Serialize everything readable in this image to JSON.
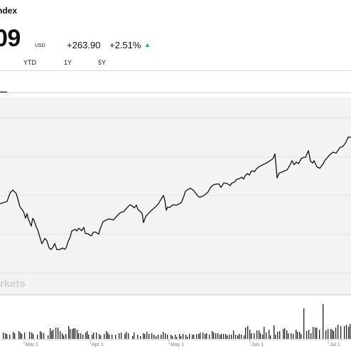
{
  "quote": {
    "name": "ndex",
    "price": "09",
    "currency": "USD",
    "change_abs": "+263.90",
    "change_pct": "+2.51%",
    "direction": "up",
    "up_color": "#1ab36b"
  },
  "ranges": [
    "YTD",
    "1Y",
    "5Y"
  ],
  "watermark": "rkets",
  "chart_data": {
    "type": "line",
    "x_ticks": [
      "Mar 1",
      "Apr 1",
      "May 1",
      "Jun 1",
      "Jul 1"
    ],
    "line": [
      [
        0,
        286.75
      ],
      [
        10,
        283.43
      ],
      [
        14,
        271.93
      ],
      [
        18,
        267.5
      ],
      [
        23,
        272.58
      ],
      [
        28,
        290.84
      ],
      [
        33,
        297.59
      ],
      [
        36,
        307.22
      ],
      [
        38,
        300.69
      ],
      [
        40,
        308.53
      ],
      [
        44,
        318.3
      ],
      [
        46,
        307.38
      ],
      [
        48,
        310.26
      ],
      [
        51,
        319.51
      ],
      [
        53,
        323.18
      ],
      [
        56,
        333.48
      ],
      [
        59,
        343.08
      ],
      [
        63,
        335.5
      ],
      [
        66,
        338.8
      ],
      [
        69,
        348.86
      ],
      [
        72,
        351.3
      ],
      [
        75,
        347.12
      ],
      [
        77,
        342.71
      ],
      [
        80,
        351.29
      ],
      [
        84,
        351.11
      ],
      [
        88,
        349.11
      ],
      [
        91,
        351.01
      ],
      [
        93,
        348.84
      ],
      [
        96,
        339.74
      ],
      [
        99,
        332.85
      ],
      [
        101,
        325.13
      ],
      [
        106,
        322.67
      ],
      [
        108,
        325.08
      ],
      [
        111,
        321.22
      ],
      [
        115,
        324.83
      ],
      [
        118,
        320.02
      ],
      [
        120,
        328.51
      ],
      [
        124,
        328.86
      ],
      [
        127,
        331.63
      ],
      [
        129,
        331.56
      ],
      [
        131,
        327.07
      ],
      [
        134,
        326.47
      ],
      [
        139,
        329.38
      ],
      [
        141,
        321.82
      ],
      [
        145,
        312.21
      ],
      [
        149,
        309.73
      ],
      [
        151,
        309.28
      ],
      [
        153,
        308.02
      ],
      [
        156,
        308.62
      ],
      [
        160,
        309.52
      ],
      [
        163,
        305.7
      ],
      [
        166,
        302.25
      ],
      [
        169,
        299.8
      ],
      [
        171,
        298.61
      ],
      [
        174,
        297.96
      ],
      [
        177,
        294.33
      ],
      [
        181,
        290.03
      ],
      [
        183,
        288.09
      ],
      [
        186,
        289.97
      ],
      [
        189,
        292.66
      ],
      [
        192,
        288.62
      ],
      [
        194,
        294.67
      ],
      [
        197,
        297.33
      ],
      [
        200,
        300.26
      ],
      [
        202,
        313.33
      ],
      [
        205,
        304.62
      ],
      [
        209,
        300.47
      ],
      [
        214,
        295.38
      ],
      [
        220,
        290.06
      ],
      [
        223,
        286.73
      ],
      [
        227,
        279.86
      ],
      [
        230,
        275.17
      ],
      [
        232,
        282.17
      ],
      [
        234,
        295.99
      ],
      [
        236,
        291.27
      ],
      [
        239,
        291.91
      ],
      [
        243,
        288.41
      ],
      [
        249,
        288.58
      ],
      [
        255,
        285.31
      ],
      [
        258,
        278.33
      ],
      [
        261,
        269.37
      ],
      [
        265,
        266.23
      ],
      [
        268,
        264.95
      ],
      [
        272,
        267.53
      ],
      [
        275,
        271.35
      ],
      [
        278,
        275.51
      ],
      [
        281,
        277.76
      ],
      [
        287,
        275.31
      ],
      [
        291,
        271.79
      ],
      [
        293,
        269.87
      ],
      [
        296,
        264.23
      ],
      [
        300,
        260.35
      ],
      [
        303,
        259.32
      ],
      [
        308,
        258.79
      ],
      [
        311,
        263.88
      ],
      [
        315,
        257.36
      ],
      [
        320,
        258.54
      ],
      [
        324,
        261.13
      ],
      [
        326,
        257.87
      ],
      [
        330,
        256.3
      ],
      [
        333,
        252.42
      ],
      [
        337,
        251.51
      ],
      [
        340,
        249.43
      ],
      [
        343,
        251.93
      ],
      [
        345,
        247.44
      ],
      [
        348,
        244.18
      ],
      [
        351,
        246.31
      ],
      [
        354,
        240.38
      ],
      [
        358,
        241.57
      ],
      [
        361,
        237.63
      ],
      [
        364,
        234.98
      ],
      [
        368,
        232.87
      ],
      [
        371,
        231.35
      ],
      [
        375,
        229.42
      ],
      [
        380,
        226.16
      ],
      [
        384,
        223.5
      ],
      [
        387,
        216.57
      ],
      [
        390,
        250.41
      ],
      [
        393,
        243.39
      ],
      [
        397,
        242.17
      ],
      [
        401,
        240.24
      ],
      [
        404,
        239.08
      ],
      [
        408,
        232.64
      ],
      [
        411,
        226.19
      ],
      [
        414,
        231.84
      ],
      [
        417,
        228.05
      ],
      [
        420,
        230.5
      ],
      [
        424,
        223.26
      ],
      [
        427,
        221.66
      ],
      [
        430,
        221.34
      ],
      [
        434,
        212.05
      ],
      [
        437,
        226.77
      ],
      [
        440,
        229.49
      ],
      [
        442,
        226.11
      ],
      [
        446,
        234.76
      ],
      [
        450,
        236.88
      ],
      [
        455,
        230.33
      ],
      [
        457,
        226.04
      ],
      [
        462,
        220.25
      ],
      [
        466,
        216.08
      ],
      [
        469,
        214.11
      ],
      [
        473,
        215.57
      ],
      [
        476,
        211.07
      ],
      [
        479,
        207.12
      ],
      [
        482,
        206.38
      ],
      [
        485,
        203.08
      ],
      [
        487,
        199.66
      ],
      [
        490,
        193.06
      ],
      [
        494,
        193.06
      ]
    ],
    "volume": [
      [
        4,
        9
      ],
      [
        7,
        8
      ],
      [
        9,
        7
      ],
      [
        13,
        6
      ],
      [
        18,
        10
      ],
      [
        20,
        8
      ],
      [
        26,
        11
      ],
      [
        28,
        9
      ],
      [
        30,
        7
      ],
      [
        34,
        9
      ],
      [
        41,
        10
      ],
      [
        44,
        9
      ],
      [
        46,
        7
      ],
      [
        52,
        6
      ],
      [
        56,
        11
      ],
      [
        58,
        9
      ],
      [
        61,
        8
      ],
      [
        67,
        5
      ],
      [
        70,
        15
      ],
      [
        72,
        11
      ],
      [
        74,
        13
      ],
      [
        78,
        16
      ],
      [
        81,
        16
      ],
      [
        84,
        11
      ],
      [
        87,
        8
      ],
      [
        89,
        5
      ],
      [
        92,
        7
      ],
      [
        96,
        18
      ],
      [
        98,
        14
      ],
      [
        101,
        14
      ],
      [
        103,
        15
      ],
      [
        105,
        15
      ],
      [
        108,
        13
      ],
      [
        110,
        8
      ],
      [
        113,
        8
      ],
      [
        116,
        6
      ],
      [
        120,
        9
      ],
      [
        122,
        11
      ],
      [
        124,
        6
      ],
      [
        129,
        6
      ],
      [
        131,
        9
      ],
      [
        135,
        9
      ],
      [
        139,
        7
      ],
      [
        141,
        5
      ],
      [
        146,
        7
      ],
      [
        149,
        11
      ],
      [
        151,
        9
      ],
      [
        153,
        6
      ],
      [
        157,
        6
      ],
      [
        162,
        6
      ],
      [
        167,
        8
      ],
      [
        170,
        9
      ],
      [
        175,
        7
      ],
      [
        177,
        10
      ],
      [
        180,
        8
      ],
      [
        186,
        4
      ],
      [
        188,
        9
      ],
      [
        193,
        6
      ],
      [
        197,
        4
      ],
      [
        201,
        8
      ],
      [
        203,
        7
      ],
      [
        206,
        10
      ],
      [
        209,
        7
      ],
      [
        213,
        8
      ],
      [
        216,
        6
      ],
      [
        219,
        4
      ],
      [
        222,
        6
      ],
      [
        226,
        6
      ],
      [
        229,
        10
      ],
      [
        232,
        8
      ],
      [
        235,
        6
      ],
      [
        240,
        6
      ],
      [
        242,
        4
      ],
      [
        246,
        6
      ],
      [
        248,
        3
      ],
      [
        252,
        7
      ],
      [
        254,
        4
      ],
      [
        257,
        7
      ],
      [
        261,
        6
      ],
      [
        263,
        3
      ],
      [
        266,
        7
      ],
      [
        270,
        6
      ],
      [
        272,
        6
      ],
      [
        276,
        7
      ],
      [
        279,
        7
      ],
      [
        281,
        9
      ],
      [
        285,
        9
      ],
      [
        288,
        7
      ],
      [
        290,
        8
      ],
      [
        294,
        6
      ],
      [
        298,
        11
      ],
      [
        300,
        9
      ],
      [
        303,
        8
      ],
      [
        306,
        8
      ],
      [
        309,
        6
      ],
      [
        311,
        7
      ],
      [
        314,
        7
      ],
      [
        317,
        7
      ],
      [
        319,
        5
      ],
      [
        322,
        6
      ],
      [
        325,
        6
      ],
      [
        328,
        12
      ],
      [
        331,
        6
      ],
      [
        334,
        5
      ],
      [
        336,
        7
      ],
      [
        339,
        6
      ],
      [
        343,
        5
      ],
      [
        345,
        16
      ],
      [
        348,
        18
      ],
      [
        351,
        13
      ],
      [
        353,
        8
      ],
      [
        357,
        8
      ],
      [
        361,
        12
      ],
      [
        364,
        12
      ],
      [
        366,
        8
      ],
      [
        369,
        6
      ],
      [
        371,
        17
      ],
      [
        374,
        9
      ],
      [
        378,
        13
      ],
      [
        380,
        5
      ],
      [
        385,
        19
      ],
      [
        387,
        6
      ],
      [
        390,
        10
      ],
      [
        393,
        11
      ],
      [
        398,
        14
      ],
      [
        400,
        15
      ],
      [
        403,
        12
      ],
      [
        405,
        8
      ],
      [
        409,
        8
      ],
      [
        412,
        7
      ],
      [
        416,
        13
      ],
      [
        418,
        10
      ],
      [
        421,
        10
      ],
      [
        423,
        7
      ],
      [
        427,
        43
      ],
      [
        431,
        11
      ],
      [
        434,
        13
      ],
      [
        437,
        8
      ],
      [
        440,
        17
      ],
      [
        443,
        16
      ],
      [
        445,
        16
      ],
      [
        449,
        13
      ],
      [
        454,
        49
      ],
      [
        458,
        12
      ],
      [
        461,
        14
      ],
      [
        465,
        14
      ],
      [
        467,
        13
      ],
      [
        469,
        11
      ],
      [
        472,
        16
      ],
      [
        475,
        20
      ],
      [
        479,
        18
      ],
      [
        484,
        18
      ],
      [
        487,
        20
      ],
      [
        490,
        17
      ],
      [
        492,
        21
      ]
    ]
  }
}
